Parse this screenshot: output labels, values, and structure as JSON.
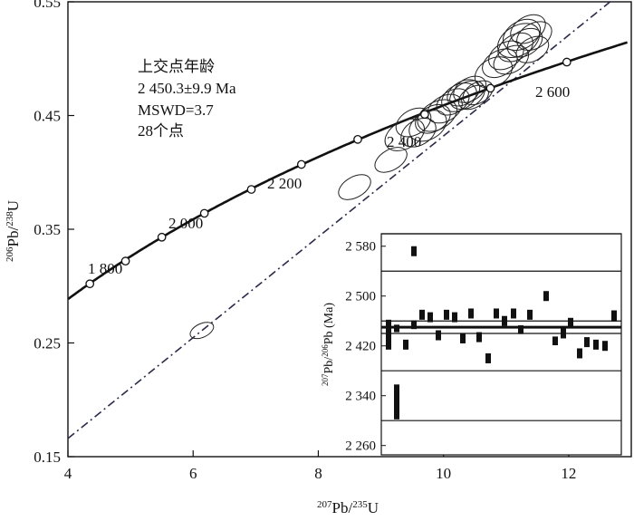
{
  "chart_data": {
    "type": "scatter",
    "main": {
      "xlabel_parts": [
        "207",
        "Pb/",
        "235",
        "U"
      ],
      "ylabel_parts": [
        "206",
        "Pb/",
        "238",
        "U"
      ],
      "xlim": [
        4,
        13
      ],
      "ylim": [
        0.15,
        0.55
      ],
      "x_ticks": [
        4,
        6,
        8,
        10,
        12
      ],
      "x_tick_labels": [
        "4",
        "6",
        "8",
        "10",
        "12"
      ],
      "y_ticks": [
        0.15,
        0.25,
        0.35,
        0.45,
        0.55
      ],
      "y_tick_labels": [
        "0.15",
        "0.25",
        "0.35",
        "0.45",
        "0.55"
      ],
      "concordia_ages_ma": [
        1800,
        2000,
        2200,
        2400,
        2600
      ],
      "concordia_age_labels": [
        "1 800",
        "2 000",
        "2 200",
        "2 400",
        "2 600"
      ],
      "concordia_markers": [
        {
          "x": 4.35,
          "y": 0.302
        },
        {
          "x": 4.92,
          "y": 0.322
        },
        {
          "x": 5.5,
          "y": 0.343
        },
        {
          "x": 6.18,
          "y": 0.364
        },
        {
          "x": 6.93,
          "y": 0.385
        },
        {
          "x": 7.73,
          "y": 0.407
        },
        {
          "x": 8.63,
          "y": 0.429
        },
        {
          "x": 9.7,
          "y": 0.451
        },
        {
          "x": 10.75,
          "y": 0.474
        },
        {
          "x": 11.97,
          "y": 0.497
        }
      ],
      "discordia_line": [
        {
          "x": 4.0,
          "y": 0.166
        },
        {
          "x": 13.0,
          "y": 0.565
        }
      ],
      "error_ellipses": [
        {
          "x": 6.14,
          "y": 0.261,
          "w": 0.2,
          "h": 0.006,
          "r": -25
        },
        {
          "x": 8.58,
          "y": 0.387,
          "w": 0.28,
          "h": 0.009,
          "r": -30
        },
        {
          "x": 9.16,
          "y": 0.411,
          "w": 0.28,
          "h": 0.009,
          "r": -30
        },
        {
          "x": 9.38,
          "y": 0.433,
          "w": 0.34,
          "h": 0.012,
          "r": -30
        },
        {
          "x": 9.52,
          "y": 0.444,
          "w": 0.3,
          "h": 0.011,
          "r": -30
        },
        {
          "x": 9.6,
          "y": 0.435,
          "w": 0.3,
          "h": 0.011,
          "r": -30
        },
        {
          "x": 9.75,
          "y": 0.441,
          "w": 0.32,
          "h": 0.012,
          "r": -30
        },
        {
          "x": 9.83,
          "y": 0.447,
          "w": 0.3,
          "h": 0.011,
          "r": -30
        },
        {
          "x": 9.9,
          "y": 0.45,
          "w": 0.34,
          "h": 0.012,
          "r": -30
        },
        {
          "x": 10.02,
          "y": 0.456,
          "w": 0.3,
          "h": 0.011,
          "r": -30
        },
        {
          "x": 10.15,
          "y": 0.462,
          "w": 0.28,
          "h": 0.01,
          "r": -30
        },
        {
          "x": 10.25,
          "y": 0.466,
          "w": 0.3,
          "h": 0.011,
          "r": -30
        },
        {
          "x": 10.32,
          "y": 0.47,
          "w": 0.28,
          "h": 0.01,
          "r": -30
        },
        {
          "x": 10.38,
          "y": 0.468,
          "w": 0.3,
          "h": 0.011,
          "r": -30
        },
        {
          "x": 10.42,
          "y": 0.473,
          "w": 0.28,
          "h": 0.01,
          "r": -30
        },
        {
          "x": 10.48,
          "y": 0.466,
          "w": 0.26,
          "h": 0.009,
          "r": -30
        },
        {
          "x": 10.55,
          "y": 0.47,
          "w": 0.26,
          "h": 0.009,
          "r": -30
        },
        {
          "x": 10.8,
          "y": 0.488,
          "w": 0.32,
          "h": 0.012,
          "r": -30
        },
        {
          "x": 10.9,
          "y": 0.496,
          "w": 0.3,
          "h": 0.011,
          "r": -30
        },
        {
          "x": 11.0,
          "y": 0.503,
          "w": 0.3,
          "h": 0.011,
          "r": -30
        },
        {
          "x": 11.08,
          "y": 0.499,
          "w": 0.3,
          "h": 0.011,
          "r": -30
        },
        {
          "x": 11.15,
          "y": 0.51,
          "w": 0.3,
          "h": 0.011,
          "r": -30
        },
        {
          "x": 11.2,
          "y": 0.516,
          "w": 0.36,
          "h": 0.013,
          "r": -30
        },
        {
          "x": 11.25,
          "y": 0.521,
          "w": 0.32,
          "h": 0.012,
          "r": -30
        },
        {
          "x": 11.3,
          "y": 0.514,
          "w": 0.3,
          "h": 0.011,
          "r": -30
        },
        {
          "x": 11.35,
          "y": 0.526,
          "w": 0.3,
          "h": 0.011,
          "r": -30
        },
        {
          "x": 11.42,
          "y": 0.508,
          "w": 0.28,
          "h": 0.01,
          "r": -30
        },
        {
          "x": 11.45,
          "y": 0.52,
          "w": 0.3,
          "h": 0.011,
          "r": -30
        }
      ],
      "annotation_lines": [
        "上交点年龄",
        "2 450.3±9.9 Ma",
        "MSWD=3.7",
        "28个点"
      ]
    },
    "inset": {
      "ylabel_parts": [
        "207",
        "Pb/",
        "206",
        "Pb (Ma)"
      ],
      "ylim": [
        2245,
        2600
      ],
      "y_ticks": [
        2260,
        2340,
        2420,
        2500,
        2580
      ],
      "y_tick_labels": [
        "2 260",
        "2 340",
        "2 420",
        "2 500",
        "2 580"
      ],
      "reference_lines": [
        2300,
        2380,
        2440,
        2460,
        2540,
        2600
      ],
      "mean_line": 2450,
      "bars": [
        {
          "mid": 2438,
          "half": 24
        },
        {
          "mid": 2422,
          "half": 8
        },
        {
          "mid": 2448,
          "half": 6
        },
        {
          "mid": 2470,
          "half": 8
        },
        {
          "mid": 2454,
          "half": 7
        },
        {
          "mid": 2466,
          "half": 8
        },
        {
          "mid": 2437,
          "half": 8
        },
        {
          "mid": 2432,
          "half": 8
        },
        {
          "mid": 2470,
          "half": 8
        },
        {
          "mid": 2466,
          "half": 8
        },
        {
          "mid": 2434,
          "half": 8
        },
        {
          "mid": 2572,
          "half": 8
        },
        {
          "mid": 2472,
          "half": 8
        },
        {
          "mid": 2472,
          "half": 8
        },
        {
          "mid": 2400,
          "half": 8
        },
        {
          "mid": 2460,
          "half": 8
        },
        {
          "mid": 2472,
          "half": 8
        },
        {
          "mid": 2446,
          "half": 7
        },
        {
          "mid": 2470,
          "half": 8
        },
        {
          "mid": 2500,
          "half": 8
        },
        {
          "mid": 2428,
          "half": 7
        },
        {
          "mid": 2440,
          "half": 8
        },
        {
          "mid": 2458,
          "half": 7
        },
        {
          "mid": 2408,
          "half": 8
        },
        {
          "mid": 2426,
          "half": 8
        },
        {
          "mid": 2422,
          "half": 8
        },
        {
          "mid": 2420,
          "half": 8
        },
        {
          "mid": 2468,
          "half": 9
        },
        {
          "mid": 2330,
          "half": 28
        }
      ],
      "bar_order": [
        0,
        1,
        2,
        3,
        4,
        5,
        6,
        7,
        8,
        9,
        10,
        12,
        13,
        14,
        15,
        16,
        17,
        18,
        19,
        20,
        21,
        22,
        23,
        24,
        25,
        26,
        27
      ]
    }
  }
}
